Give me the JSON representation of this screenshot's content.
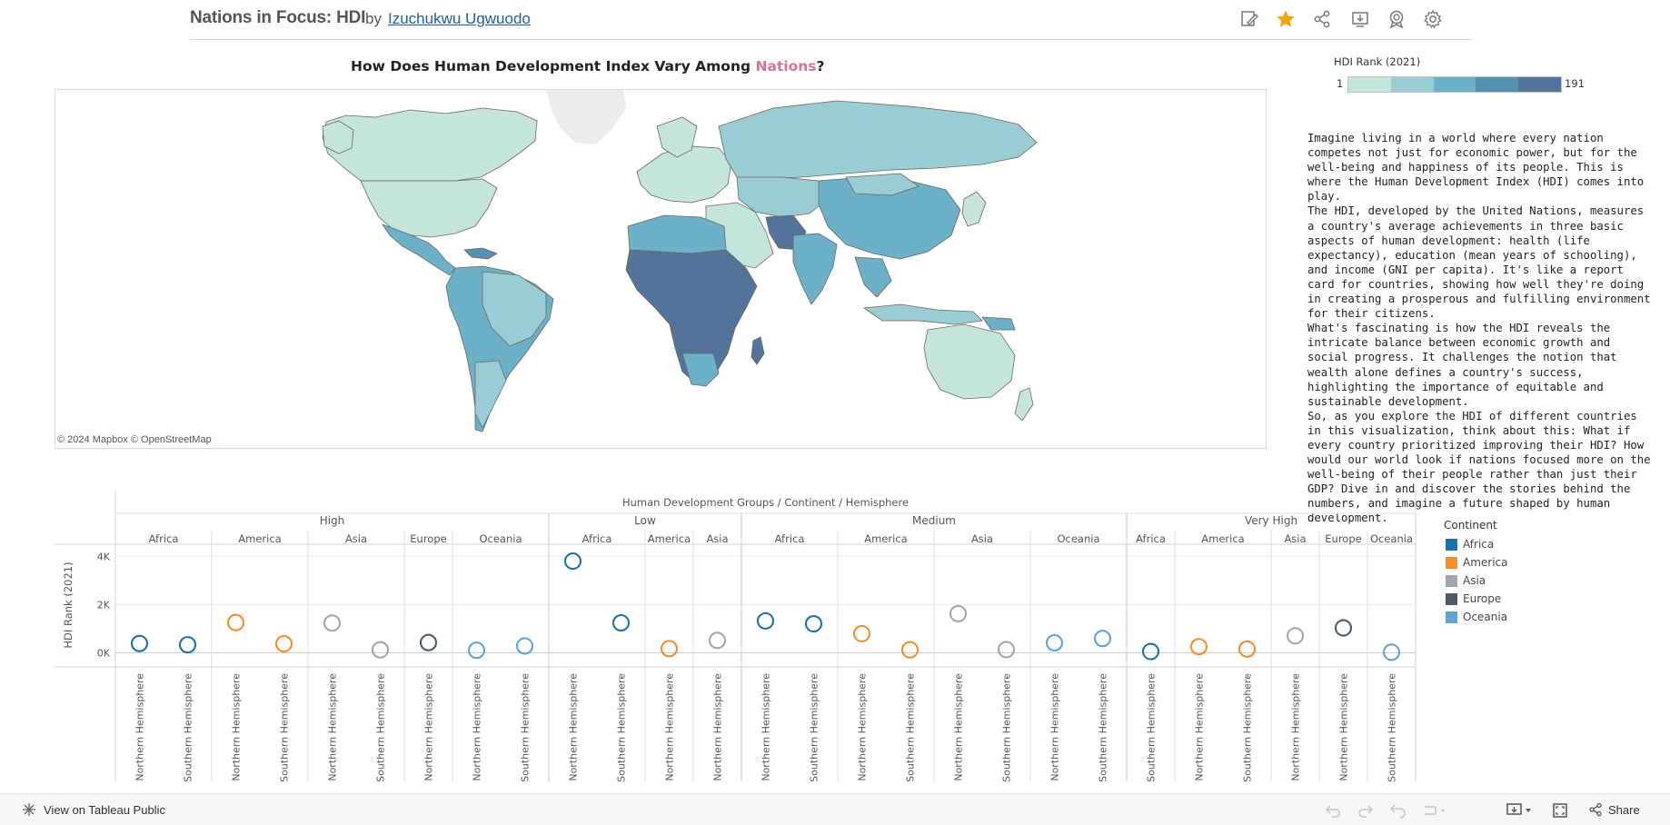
{
  "header": {
    "title": "Nations in Focus: HDI",
    "by": "by",
    "author": "Izuchukwu Ugwuodo",
    "icons": [
      "edit-icon",
      "favorite-star-icon",
      "share-icon",
      "download-icon",
      "badge-icon",
      "settings-gear-icon"
    ]
  },
  "map": {
    "title_pre": "How Does Human Development Index Vary Among ",
    "title_highlight": "Nations",
    "title_post": "?",
    "credit": "© 2024 Mapbox  © OpenStreetMap"
  },
  "hdi_legend": {
    "title": "HDI Rank (2021)",
    "min": "1",
    "max": "191",
    "colors": [
      "#c5e4dc",
      "#99cdd3",
      "#6cb1c7",
      "#5690b3",
      "#53739a"
    ]
  },
  "description": [
    "Imagine living in a world where every nation competes not just for economic power, but for the well-being and happiness of its people. This is where the Human Development Index (HDI) comes into play.",
    "The HDI, developed by the United Nations, measures a country's average achievements in three basic aspects of human development: health (life expectancy), education (mean years of schooling), and income (GNI per capita). It's like a report card for countries, showing how well they're doing in creating a prosperous and fulfilling environment for their citizens.",
    "What's fascinating is how the HDI reveals the intricate balance between economic growth and social progress. It challenges the notion that wealth alone defines a country's success, highlighting the importance of equitable and sustainable development.",
    "So, as you explore the HDI of different countries in this visualization, think about this: What if every country prioritized improving their HDI? How would our world look if nations focused more on the well-being of their people rather than just their GDP? Dive in and discover the stories behind the numbers, and imagine a future shaped by human development."
  ],
  "chart_data": {
    "type": "scatter",
    "title": "Human Development Groups / Continent / Hemisphere",
    "ylabel": "HDI Rank (2021)",
    "ylim": [
      -250,
      4200
    ],
    "yticks": [
      {
        "v": 0,
        "label": "0K"
      },
      {
        "v": 2000,
        "label": "2K"
      },
      {
        "v": 4000,
        "label": "4K"
      }
    ],
    "colors": {
      "Africa": "#1f6fa8",
      "America": "#f28e2b",
      "Asia": "#a0a6ae",
      "Europe": "#4e5a68",
      "Oceania": "#5fa3d0"
    },
    "groups": [
      {
        "name": "High",
        "continents": [
          {
            "name": "Africa",
            "points": [
              {
                "hem": "Northern Hemisphere",
                "value": 380
              },
              {
                "hem": "Southern Hemisphere",
                "value": 330
              }
            ]
          },
          {
            "name": "America",
            "points": [
              {
                "hem": "Northern Hemisphere",
                "value": 1250
              },
              {
                "hem": "Southern Hemisphere",
                "value": 370
              }
            ]
          },
          {
            "name": "Asia",
            "points": [
              {
                "hem": "Northern Hemisphere",
                "value": 1230
              },
              {
                "hem": "Southern Hemisphere",
                "value": 120
              }
            ]
          },
          {
            "name": "Europe",
            "points": [
              {
                "hem": "Northern Hemisphere",
                "value": 420
              }
            ]
          },
          {
            "name": "Oceania",
            "points": [
              {
                "hem": "Northern Hemisphere",
                "value": 100
              },
              {
                "hem": "Southern Hemisphere",
                "value": 280
              }
            ]
          }
        ]
      },
      {
        "name": "Low",
        "continents": [
          {
            "name": "Africa",
            "points": [
              {
                "hem": "Northern Hemisphere",
                "value": 3800
              },
              {
                "hem": "Southern Hemisphere",
                "value": 1240
              }
            ]
          },
          {
            "name": "America",
            "points": [
              {
                "hem": "Northern Hemisphere",
                "value": 170
              }
            ]
          },
          {
            "name": "Asia",
            "points": [
              {
                "hem": "Northern Hemisphere",
                "value": 510
              }
            ]
          }
        ]
      },
      {
        "name": "Medium",
        "continents": [
          {
            "name": "Africa",
            "points": [
              {
                "hem": "Northern Hemisphere",
                "value": 1320
              },
              {
                "hem": "Southern Hemisphere",
                "value": 1200
              }
            ]
          },
          {
            "name": "America",
            "points": [
              {
                "hem": "Northern Hemisphere",
                "value": 790
              },
              {
                "hem": "Southern Hemisphere",
                "value": 120
              }
            ]
          },
          {
            "name": "Asia",
            "points": [
              {
                "hem": "Northern Hemisphere",
                "value": 1620
              },
              {
                "hem": "Southern Hemisphere",
                "value": 130
              }
            ]
          },
          {
            "name": "Oceania",
            "points": [
              {
                "hem": "Northern Hemisphere",
                "value": 410
              },
              {
                "hem": "Southern Hemisphere",
                "value": 590
              }
            ]
          }
        ]
      },
      {
        "name": "Very High",
        "continents": [
          {
            "name": "Africa",
            "points": [
              {
                "hem": "Southern Hemisphere",
                "value": 50
              }
            ]
          },
          {
            "name": "America",
            "points": [
              {
                "hem": "Northern Hemisphere",
                "value": 250
              },
              {
                "hem": "Southern Hemisphere",
                "value": 150
              }
            ]
          },
          {
            "name": "Asia",
            "points": [
              {
                "hem": "Northern Hemisphere",
                "value": 700
              }
            ]
          },
          {
            "name": "Europe",
            "points": [
              {
                "hem": "Northern Hemisphere",
                "value": 1030
              }
            ]
          },
          {
            "name": "Oceania",
            "points": [
              {
                "hem": "Southern Hemisphere",
                "value": 20
              }
            ]
          }
        ]
      }
    ]
  },
  "continent_legend": {
    "title": "Continent",
    "items": [
      {
        "name": "Africa",
        "color": "#1f6fa8"
      },
      {
        "name": "America",
        "color": "#f28e2b"
      },
      {
        "name": "Asia",
        "color": "#a0a6ae"
      },
      {
        "name": "Europe",
        "color": "#4e5a68"
      },
      {
        "name": "Oceania",
        "color": "#5fa3d0"
      }
    ]
  },
  "footer": {
    "view_link": "View on Tableau Public",
    "share_label": "Share",
    "icons": [
      "undo-icon",
      "redo-icon",
      "revert-icon",
      "refresh-icon",
      "download-icon",
      "fullscreen-icon",
      "share-icon"
    ]
  }
}
